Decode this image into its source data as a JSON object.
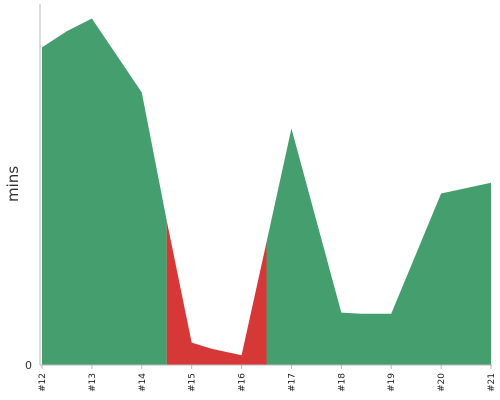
{
  "chart_data": {
    "type": "area",
    "ylabel": "mins",
    "yticks": [
      "0"
    ],
    "ylim": [
      0,
      100
    ],
    "categories": [
      "#12",
      "#13",
      "#14",
      "#15",
      "#16",
      "#17",
      "#18",
      "#19",
      "#20",
      "#21"
    ],
    "x": [
      12,
      12.5,
      13,
      14,
      14.5,
      15,
      15.4,
      16,
      16.5,
      17,
      18,
      18.4,
      19,
      20,
      21
    ],
    "values": [
      88,
      92.5,
      96,
      75.5,
      40,
      6.2,
      4.5,
      2.7,
      34,
      65.5,
      14.5,
      14.2,
      14.2,
      47.5,
      50.5
    ],
    "segments": [
      {
        "from": 12,
        "to": 14.5,
        "color": "#459e6d"
      },
      {
        "from": 14.5,
        "to": 16.5,
        "color": "#d63838"
      },
      {
        "from": 16.5,
        "to": 21,
        "color": "#459e6d"
      }
    ]
  }
}
